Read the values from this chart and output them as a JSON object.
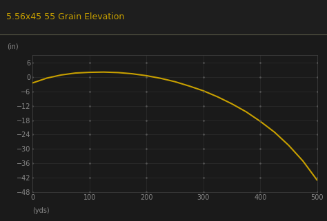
{
  "title": "5.56x45 55 Grain Elevation",
  "xlabel": "(yds)",
  "ylabel": "(in)",
  "background_color": "#1a1a1a",
  "title_color": "#c8a000",
  "axis_color": "#444444",
  "tick_color": "#888888",
  "line_color": "#c8a000",
  "grid_color": "#2e2e2e",
  "separator_color": "#555544",
  "xlim": [
    0,
    500
  ],
  "ylim": [
    -48,
    9
  ],
  "xticks": [
    0,
    100,
    200,
    300,
    400,
    500
  ],
  "yticks": [
    6,
    0,
    -6,
    -12,
    -18,
    -24,
    -30,
    -36,
    -42,
    -48
  ],
  "x_data": [
    0,
    25,
    50,
    75,
    100,
    125,
    150,
    175,
    200,
    225,
    250,
    275,
    300,
    325,
    350,
    375,
    400,
    425,
    450,
    475,
    500
  ],
  "y_data": [
    -2.5,
    -0.5,
    0.8,
    1.6,
    1.9,
    2.0,
    1.8,
    1.3,
    0.5,
    -0.6,
    -2.0,
    -3.8,
    -5.8,
    -8.3,
    -11.2,
    -14.5,
    -18.5,
    -23.0,
    -28.5,
    -35.0,
    -43.0
  ],
  "title_fontsize": 9,
  "tick_fontsize": 7,
  "label_fontsize": 7
}
